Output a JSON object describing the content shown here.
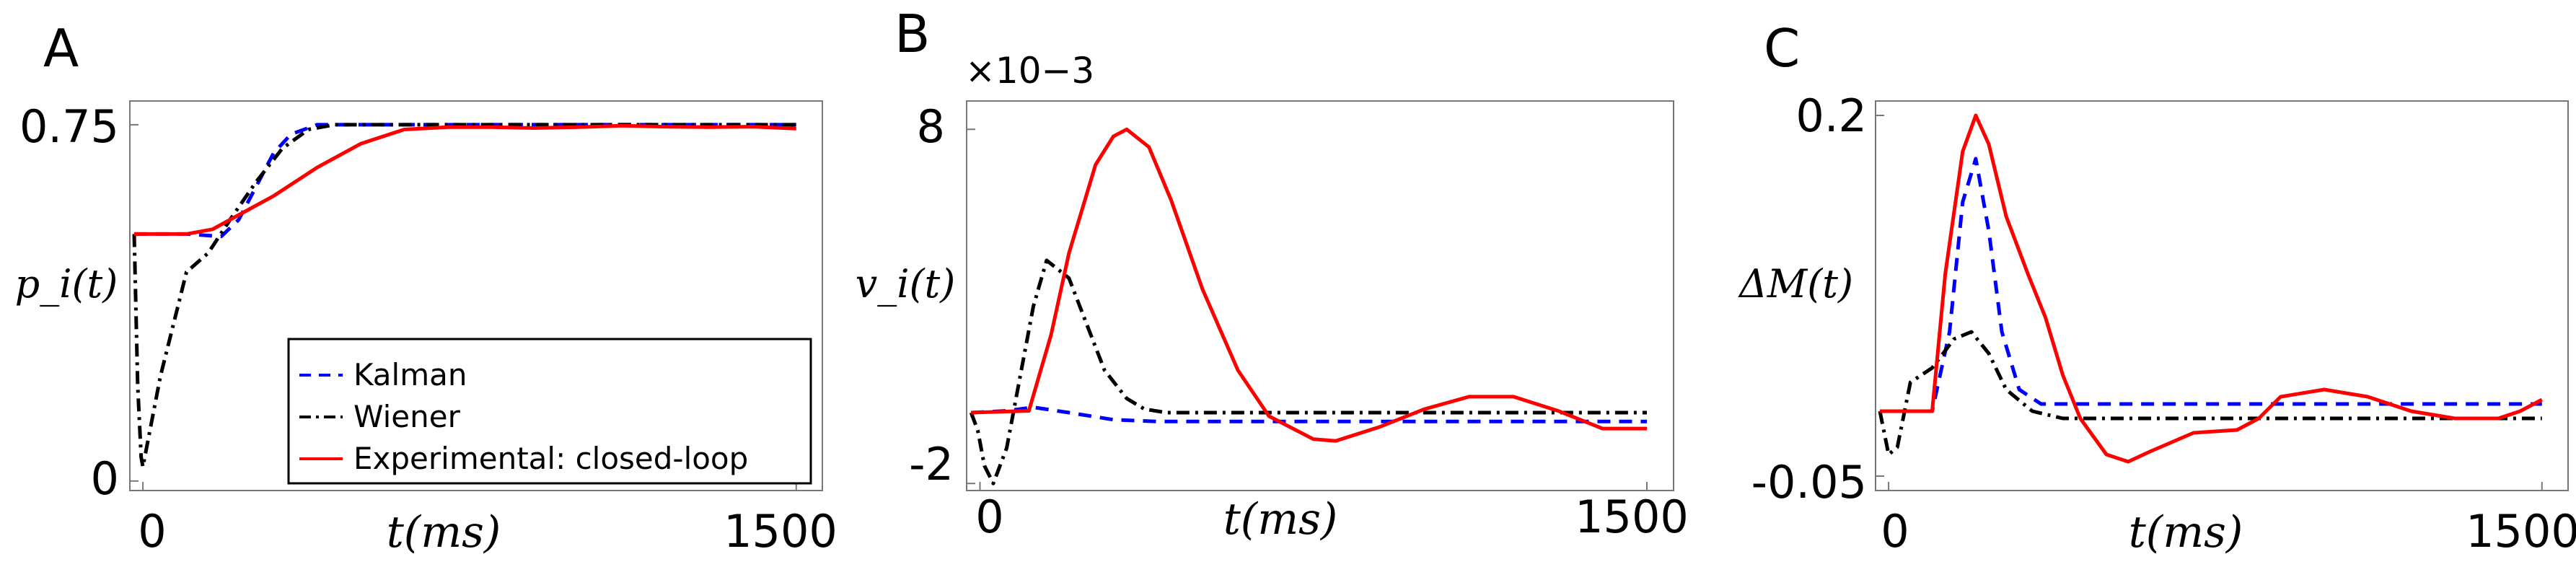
{
  "chart_data": [
    {
      "type": "line",
      "panel_label": "A",
      "ylabel": "p_i(t)",
      "xlabel": "t(ms)",
      "xlim": [
        -30,
        1560
      ],
      "ylim": [
        -0.02,
        0.8
      ],
      "x_ticks": [
        0,
        1500
      ],
      "x_tick_labels": [
        "0",
        "1500"
      ],
      "y_ticks": [
        0,
        0.75
      ],
      "y_tick_labels": [
        "0",
        "0.75"
      ],
      "exponent_label": "",
      "legend": {
        "position": "bottom-right",
        "entries": [
          "Kalman",
          "Wiener",
          "Experimental: closed-loop"
        ]
      },
      "series": [
        {
          "name": "Kalman",
          "color": "#0000ff",
          "style": "dashed",
          "x": [
            -20,
            100,
            180,
            220,
            260,
            300,
            340,
            400,
            500,
            1500
          ],
          "y": [
            0.52,
            0.52,
            0.515,
            0.55,
            0.62,
            0.69,
            0.73,
            0.75,
            0.75,
            0.75
          ]
        },
        {
          "name": "Wiener",
          "color": "#000000",
          "style": "dashdot",
          "x": [
            -20,
            -12,
            -4,
            0,
            40,
            100,
            150,
            200,
            260,
            320,
            380,
            440,
            500,
            1500
          ],
          "y": [
            0.52,
            0.2,
            0.05,
            0.03,
            0.22,
            0.44,
            0.48,
            0.55,
            0.63,
            0.7,
            0.74,
            0.75,
            0.75,
            0.75
          ]
        },
        {
          "name": "Experimental: closed-loop",
          "color": "#ff0000",
          "style": "solid",
          "x": [
            -20,
            100,
            160,
            220,
            300,
            400,
            500,
            600,
            700,
            800,
            900,
            1000,
            1100,
            1200,
            1300,
            1400,
            1500
          ],
          "y": [
            0.52,
            0.52,
            0.53,
            0.56,
            0.6,
            0.66,
            0.71,
            0.74,
            0.745,
            0.745,
            0.743,
            0.745,
            0.748,
            0.746,
            0.745,
            0.746,
            0.742
          ]
        }
      ]
    },
    {
      "type": "line",
      "panel_label": "B",
      "ylabel": "v_i(t)",
      "xlabel": "t(ms)",
      "xlim": [
        -30,
        1560
      ],
      "ylim": [
        -2.2,
        8.8
      ],
      "x_ticks": [
        0,
        1500
      ],
      "x_tick_labels": [
        "0",
        "1500"
      ],
      "y_ticks": [
        -2,
        8
      ],
      "y_tick_labels": [
        "-2",
        "8"
      ],
      "exponent_label": "×10−3",
      "legend": null,
      "series": [
        {
          "name": "Kalman",
          "color": "#0000ff",
          "style": "dashed",
          "x": [
            -20,
            60,
            120,
            200,
            300,
            400,
            500,
            1500
          ],
          "y": [
            0,
            0.05,
            0.15,
            0.0,
            -0.2,
            -0.25,
            -0.25,
            -0.25
          ]
        },
        {
          "name": "Wiener",
          "color": "#000000",
          "style": "dashdot",
          "x": [
            -20,
            -5,
            10,
            30,
            60,
            90,
            120,
            150,
            200,
            240,
            280,
            330,
            370,
            420,
            470,
            1500
          ],
          "y": [
            0,
            -0.5,
            -1.5,
            -2.0,
            -1.0,
            1.0,
            3.0,
            4.3,
            3.8,
            2.5,
            1.2,
            0.4,
            0.1,
            0.0,
            0.0,
            0.0
          ]
        },
        {
          "name": "Experimental: closed-loop",
          "color": "#ff0000",
          "style": "solid",
          "x": [
            -20,
            110,
            160,
            200,
            260,
            300,
            330,
            380,
            430,
            500,
            580,
            650,
            750,
            800,
            900,
            1000,
            1100,
            1200,
            1300,
            1400,
            1500
          ],
          "y": [
            0,
            0.05,
            2.2,
            4.5,
            7.0,
            7.8,
            8.0,
            7.5,
            6.0,
            3.5,
            1.2,
            -0.1,
            -0.75,
            -0.8,
            -0.4,
            0.1,
            0.45,
            0.45,
            0.05,
            -0.45,
            -0.45
          ]
        }
      ]
    },
    {
      "type": "line",
      "panel_label": "C",
      "ylabel": "ΔM(t)",
      "xlabel": "t(ms)",
      "xlim": [
        -30,
        1560
      ],
      "ylim": [
        -0.06,
        0.21
      ],
      "x_ticks": [
        0,
        1500
      ],
      "x_tick_labels": [
        "0",
        "1500"
      ],
      "y_ticks": [
        -0.05,
        0.2
      ],
      "y_tick_labels": [
        "-0.05",
        "0.2"
      ],
      "exponent_label": "",
      "legend": null,
      "series": [
        {
          "name": "Kalman",
          "color": "#0000ff",
          "style": "dashed",
          "x": [
            -20,
            100,
            140,
            170,
            200,
            230,
            260,
            300,
            350,
            1500
          ],
          "y": [
            -0.005,
            -0.005,
            0.05,
            0.14,
            0.17,
            0.12,
            0.05,
            0.01,
            0.0,
            0.0
          ]
        },
        {
          "name": "Wiener",
          "color": "#000000",
          "style": "dashdot",
          "x": [
            -20,
            0,
            20,
            50,
            100,
            150,
            190,
            230,
            270,
            330,
            400,
            1500
          ],
          "y": [
            -0.005,
            -0.035,
            -0.03,
            0.015,
            0.025,
            0.045,
            0.05,
            0.035,
            0.01,
            -0.005,
            -0.01,
            -0.01
          ]
        },
        {
          "name": "Experimental: closed-loop",
          "color": "#ff0000",
          "style": "solid",
          "x": [
            -20,
            100,
            130,
            170,
            200,
            230,
            270,
            320,
            360,
            400,
            440,
            500,
            550,
            600,
            700,
            800,
            850,
            900,
            1000,
            1100,
            1150,
            1200,
            1300,
            1400,
            1450,
            1500
          ],
          "y": [
            -0.005,
            -0.005,
            0.09,
            0.175,
            0.2,
            0.18,
            0.13,
            0.09,
            0.06,
            0.02,
            -0.01,
            -0.035,
            -0.04,
            -0.033,
            -0.02,
            -0.018,
            -0.01,
            0.005,
            0.01,
            0.005,
            0.0,
            -0.005,
            -0.01,
            -0.01,
            -0.005,
            0.003
          ]
        }
      ]
    }
  ]
}
